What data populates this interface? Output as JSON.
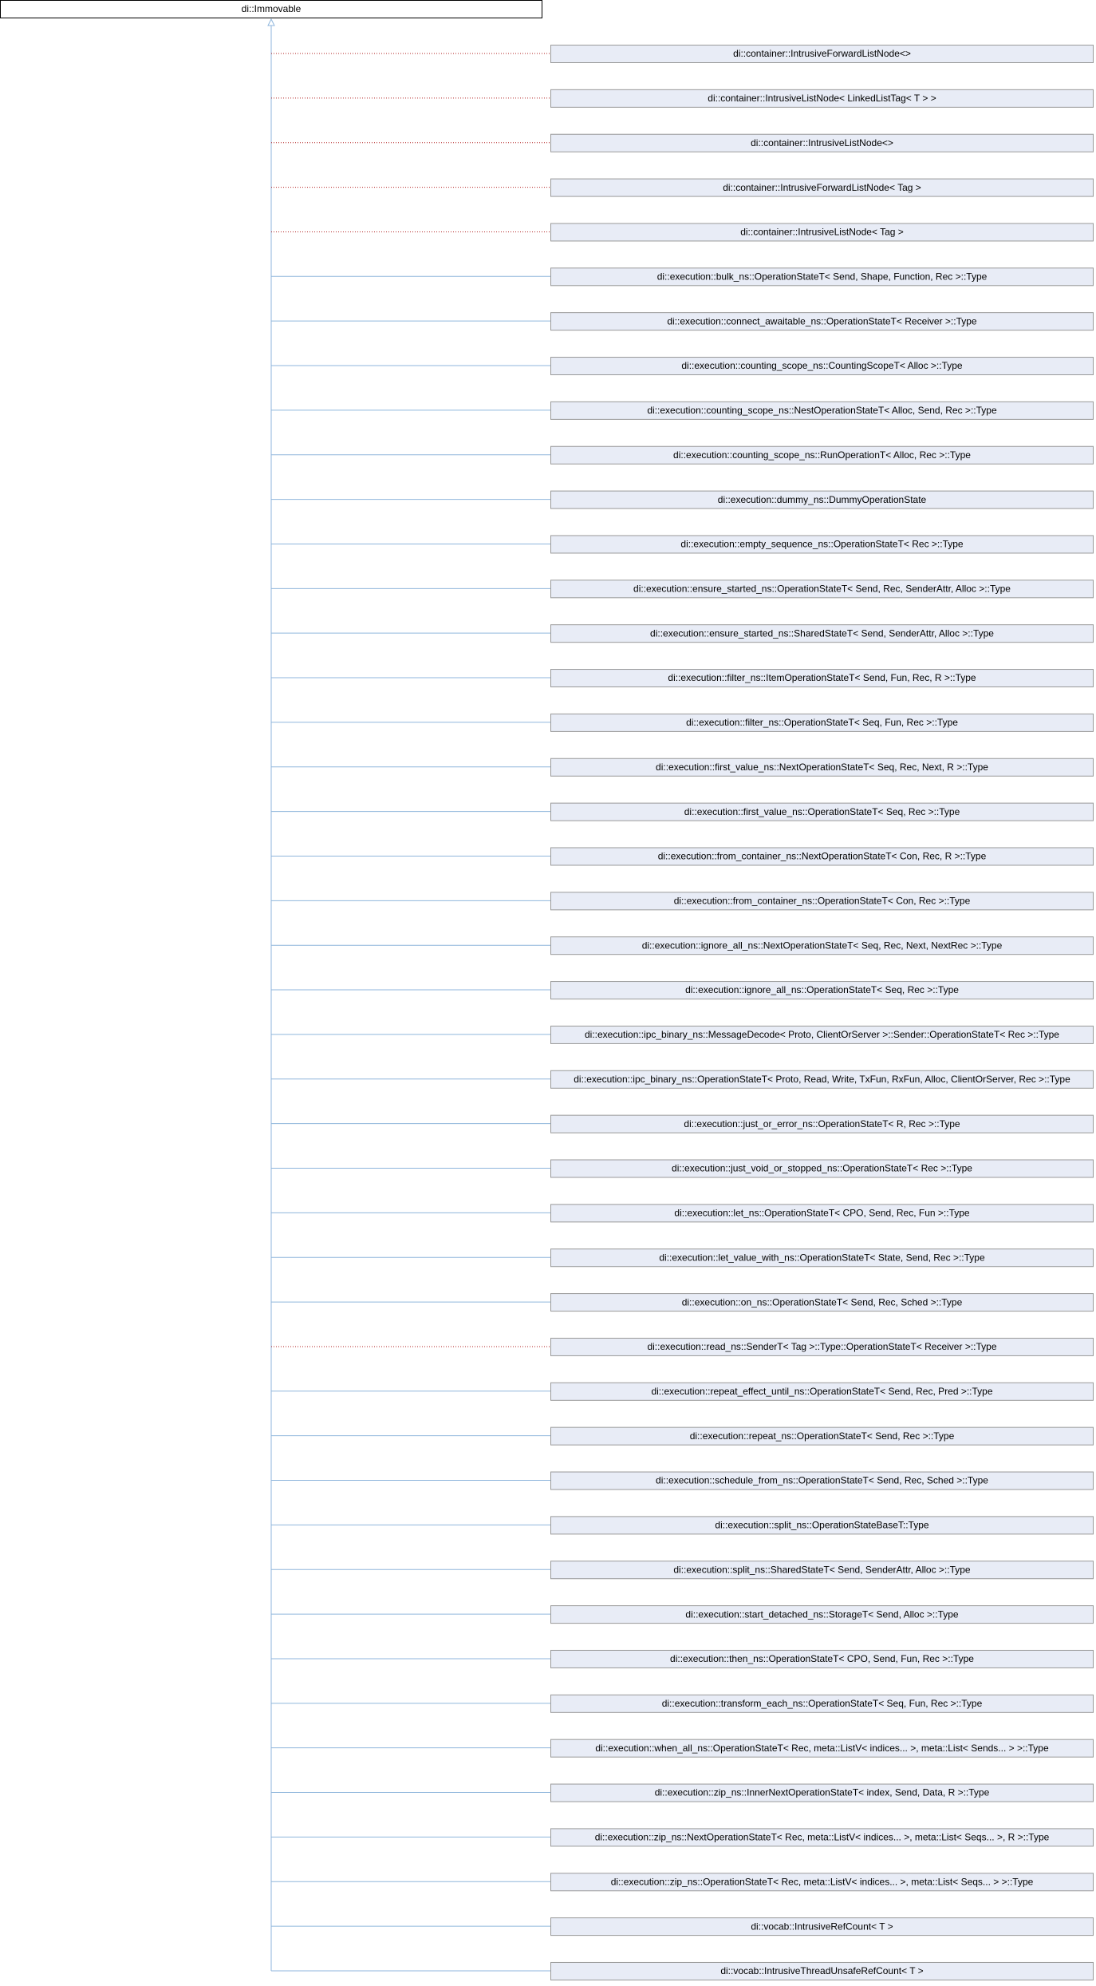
{
  "root": {
    "label": "di::Immovable"
  },
  "nodes": [
    {
      "label": "di::container::IntrusiveForwardListNode<>",
      "edge": "dotted"
    },
    {
      "label": "di::container::IntrusiveListNode< LinkedListTag< T > >",
      "edge": "dotted"
    },
    {
      "label": "di::container::IntrusiveListNode<>",
      "edge": "dotted"
    },
    {
      "label": "di::container::IntrusiveForwardListNode< Tag >",
      "edge": "dotted"
    },
    {
      "label": "di::container::IntrusiveListNode< Tag >",
      "edge": "dotted"
    },
    {
      "label": "di::execution::bulk_ns::OperationStateT< Send, Shape, Function, Rec >::Type",
      "edge": "solid"
    },
    {
      "label": "di::execution::connect_awaitable_ns::OperationStateT< Receiver >::Type",
      "edge": "solid"
    },
    {
      "label": "di::execution::counting_scope_ns::CountingScopeT< Alloc >::Type",
      "edge": "solid"
    },
    {
      "label": "di::execution::counting_scope_ns::NestOperationStateT< Alloc, Send, Rec >::Type",
      "edge": "solid"
    },
    {
      "label": "di::execution::counting_scope_ns::RunOperationT< Alloc, Rec >::Type",
      "edge": "solid"
    },
    {
      "label": "di::execution::dummy_ns::DummyOperationState",
      "edge": "solid"
    },
    {
      "label": "di::execution::empty_sequence_ns::OperationStateT< Rec >::Type",
      "edge": "solid"
    },
    {
      "label": "di::execution::ensure_started_ns::OperationStateT< Send, Rec, SenderAttr, Alloc >::Type",
      "edge": "solid"
    },
    {
      "label": "di::execution::ensure_started_ns::SharedStateT< Send, SenderAttr, Alloc >::Type",
      "edge": "solid"
    },
    {
      "label": "di::execution::filter_ns::ItemOperationStateT< Send, Fun, Rec, R >::Type",
      "edge": "solid"
    },
    {
      "label": "di::execution::filter_ns::OperationStateT< Seq, Fun, Rec >::Type",
      "edge": "solid"
    },
    {
      "label": "di::execution::first_value_ns::NextOperationStateT< Seq, Rec, Next, R >::Type",
      "edge": "solid"
    },
    {
      "label": "di::execution::first_value_ns::OperationStateT< Seq, Rec >::Type",
      "edge": "solid"
    },
    {
      "label": "di::execution::from_container_ns::NextOperationStateT< Con, Rec, R >::Type",
      "edge": "solid"
    },
    {
      "label": "di::execution::from_container_ns::OperationStateT< Con, Rec >::Type",
      "edge": "solid"
    },
    {
      "label": "di::execution::ignore_all_ns::NextOperationStateT< Seq, Rec, Next, NextRec >::Type",
      "edge": "solid"
    },
    {
      "label": "di::execution::ignore_all_ns::OperationStateT< Seq, Rec >::Type",
      "edge": "solid"
    },
    {
      "label": "di::execution::ipc_binary_ns::MessageDecode< Proto, ClientOrServer >::Sender::OperationStateT< Rec >::Type",
      "edge": "solid"
    },
    {
      "label": "di::execution::ipc_binary_ns::OperationStateT< Proto, Read, Write, TxFun, RxFun, Alloc, ClientOrServer, Rec >::Type",
      "edge": "solid"
    },
    {
      "label": "di::execution::just_or_error_ns::OperationStateT< R, Rec >::Type",
      "edge": "solid"
    },
    {
      "label": "di::execution::just_void_or_stopped_ns::OperationStateT< Rec >::Type",
      "edge": "solid"
    },
    {
      "label": "di::execution::let_ns::OperationStateT< CPO, Send, Rec, Fun >::Type",
      "edge": "solid"
    },
    {
      "label": "di::execution::let_value_with_ns::OperationStateT< State, Send, Rec >::Type",
      "edge": "solid"
    },
    {
      "label": "di::execution::on_ns::OperationStateT< Send, Rec, Sched >::Type",
      "edge": "solid"
    },
    {
      "label": "di::execution::read_ns::SenderT< Tag >::Type::OperationStateT< Receiver >::Type",
      "edge": "dotted"
    },
    {
      "label": "di::execution::repeat_effect_until_ns::OperationStateT< Send, Rec, Pred >::Type",
      "edge": "solid"
    },
    {
      "label": "di::execution::repeat_ns::OperationStateT< Send, Rec >::Type",
      "edge": "solid"
    },
    {
      "label": "di::execution::schedule_from_ns::OperationStateT< Send, Rec, Sched >::Type",
      "edge": "solid"
    },
    {
      "label": "di::execution::split_ns::OperationStateBaseT::Type",
      "edge": "solid"
    },
    {
      "label": "di::execution::split_ns::SharedStateT< Send, SenderAttr, Alloc >::Type",
      "edge": "solid"
    },
    {
      "label": "di::execution::start_detached_ns::StorageT< Send, Alloc >::Type",
      "edge": "solid"
    },
    {
      "label": "di::execution::then_ns::OperationStateT< CPO, Send, Fun, Rec >::Type",
      "edge": "solid"
    },
    {
      "label": "di::execution::transform_each_ns::OperationStateT< Seq, Fun, Rec >::Type",
      "edge": "solid"
    },
    {
      "label": "di::execution::when_all_ns::OperationStateT< Rec, meta::ListV< indices... >, meta::List< Sends... > >::Type",
      "edge": "solid"
    },
    {
      "label": "di::execution::zip_ns::InnerNextOperationStateT< index, Send, Data, R >::Type",
      "edge": "solid"
    },
    {
      "label": "di::execution::zip_ns::NextOperationStateT< Rec, meta::ListV< indices... >, meta::List< Seqs... >, R >::Type",
      "edge": "solid"
    },
    {
      "label": "di::execution::zip_ns::OperationStateT< Rec, meta::ListV< indices... >, meta::List< Seqs... > >::Type",
      "edge": "solid"
    },
    {
      "label": "di::vocab::IntrusiveRefCount< T >",
      "edge": "solid"
    },
    {
      "label": "di::vocab::IntrusiveThreadUnsafeRefCount< T >",
      "edge": "solid"
    }
  ]
}
